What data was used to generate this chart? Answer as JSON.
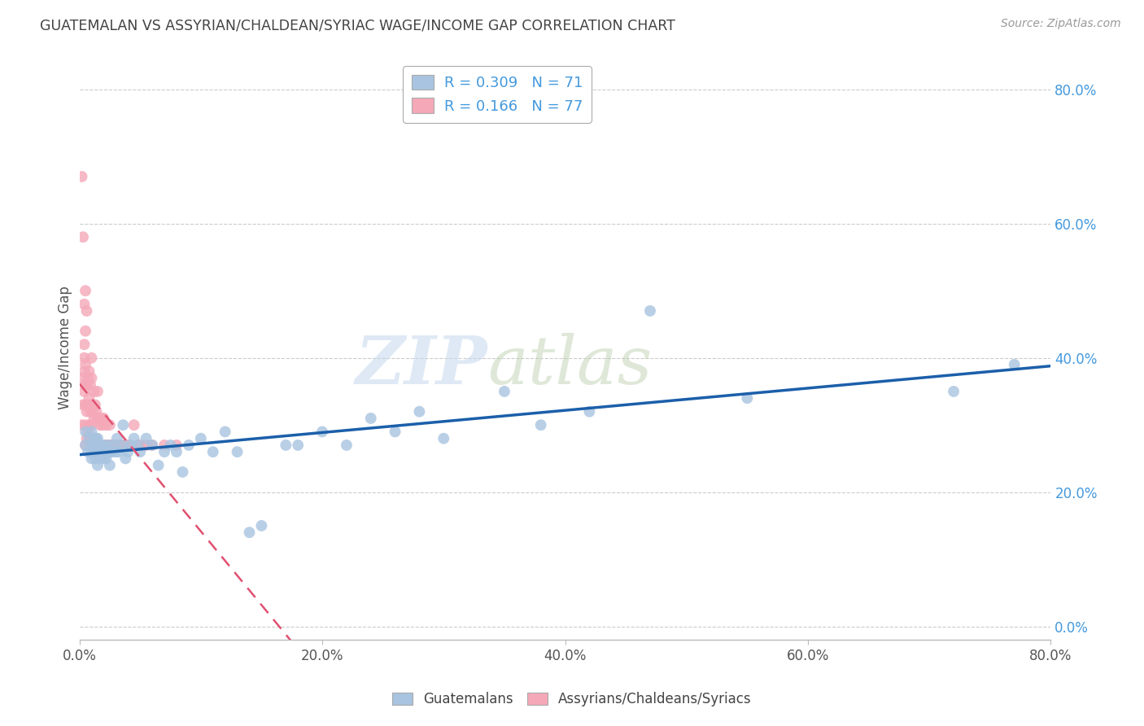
{
  "title": "GUATEMALAN VS ASSYRIAN/CHALDEAN/SYRIAC WAGE/INCOME GAP CORRELATION CHART",
  "source_text": "Source: ZipAtlas.com",
  "ylabel": "Wage/Income Gap",
  "xlabel": "",
  "xmin": 0.0,
  "xmax": 0.8,
  "ymin": -0.02,
  "ymax": 0.85,
  "blue_color": "#A8C4E0",
  "pink_color": "#F4A8B8",
  "blue_line_color": "#1B5FAA",
  "pink_line_color": "#E05070",
  "grid_color": "#CCCCCC",
  "background_color": "#FFFFFF",
  "r_blue": 0.309,
  "n_blue": 71,
  "r_pink": 0.166,
  "n_pink": 77,
  "blue_scatter_x": [
    0.005,
    0.005,
    0.007,
    0.008,
    0.01,
    0.01,
    0.01,
    0.01,
    0.012,
    0.012,
    0.013,
    0.013,
    0.014,
    0.015,
    0.015,
    0.015,
    0.016,
    0.016,
    0.017,
    0.018,
    0.019,
    0.02,
    0.02,
    0.021,
    0.022,
    0.023,
    0.024,
    0.025,
    0.025,
    0.027,
    0.028,
    0.03,
    0.031,
    0.032,
    0.035,
    0.036,
    0.038,
    0.04,
    0.042,
    0.045,
    0.048,
    0.05,
    0.055,
    0.06,
    0.065,
    0.07,
    0.075,
    0.08,
    0.085,
    0.09,
    0.1,
    0.11,
    0.12,
    0.13,
    0.14,
    0.15,
    0.17,
    0.18,
    0.2,
    0.22,
    0.24,
    0.26,
    0.28,
    0.3,
    0.35,
    0.38,
    0.42,
    0.47,
    0.55,
    0.72,
    0.77
  ],
  "blue_scatter_y": [
    0.27,
    0.29,
    0.26,
    0.28,
    0.25,
    0.27,
    0.29,
    0.26,
    0.26,
    0.28,
    0.25,
    0.27,
    0.28,
    0.24,
    0.27,
    0.28,
    0.26,
    0.27,
    0.25,
    0.26,
    0.27,
    0.25,
    0.27,
    0.26,
    0.25,
    0.26,
    0.27,
    0.24,
    0.26,
    0.26,
    0.27,
    0.26,
    0.28,
    0.26,
    0.27,
    0.3,
    0.25,
    0.26,
    0.27,
    0.28,
    0.27,
    0.26,
    0.28,
    0.27,
    0.24,
    0.26,
    0.27,
    0.26,
    0.23,
    0.27,
    0.28,
    0.26,
    0.29,
    0.26,
    0.14,
    0.15,
    0.27,
    0.27,
    0.29,
    0.27,
    0.31,
    0.29,
    0.32,
    0.28,
    0.35,
    0.3,
    0.32,
    0.47,
    0.34,
    0.35,
    0.39
  ],
  "pink_scatter_x": [
    0.002,
    0.003,
    0.003,
    0.004,
    0.004,
    0.004,
    0.005,
    0.005,
    0.005,
    0.005,
    0.005,
    0.006,
    0.006,
    0.006,
    0.007,
    0.007,
    0.007,
    0.008,
    0.008,
    0.008,
    0.009,
    0.009,
    0.009,
    0.01,
    0.01,
    0.01,
    0.01,
    0.01,
    0.011,
    0.011,
    0.012,
    0.012,
    0.012,
    0.013,
    0.013,
    0.014,
    0.014,
    0.015,
    0.015,
    0.015,
    0.016,
    0.016,
    0.017,
    0.017,
    0.018,
    0.018,
    0.019,
    0.019,
    0.02,
    0.02,
    0.021,
    0.022,
    0.022,
    0.023,
    0.024,
    0.025,
    0.025,
    0.027,
    0.028,
    0.03,
    0.032,
    0.035,
    0.038,
    0.04,
    0.045,
    0.05,
    0.055,
    0.06,
    0.07,
    0.08,
    0.002,
    0.003,
    0.004,
    0.004,
    0.005,
    0.005,
    0.006
  ],
  "pink_scatter_y": [
    0.3,
    0.33,
    0.37,
    0.35,
    0.38,
    0.4,
    0.27,
    0.3,
    0.33,
    0.36,
    0.39,
    0.28,
    0.32,
    0.36,
    0.29,
    0.33,
    0.37,
    0.3,
    0.34,
    0.38,
    0.28,
    0.32,
    0.36,
    0.27,
    0.3,
    0.33,
    0.37,
    0.4,
    0.28,
    0.32,
    0.27,
    0.31,
    0.35,
    0.28,
    0.33,
    0.27,
    0.32,
    0.27,
    0.31,
    0.35,
    0.27,
    0.31,
    0.27,
    0.3,
    0.27,
    0.31,
    0.27,
    0.3,
    0.27,
    0.31,
    0.27,
    0.27,
    0.3,
    0.27,
    0.27,
    0.27,
    0.3,
    0.27,
    0.27,
    0.27,
    0.27,
    0.27,
    0.27,
    0.27,
    0.3,
    0.27,
    0.27,
    0.27,
    0.27,
    0.27,
    0.67,
    0.58,
    0.48,
    0.42,
    0.44,
    0.5,
    0.47
  ],
  "watermark_zip": "ZIP",
  "watermark_atlas": "atlas",
  "legend_blue_label": "Guatemalans",
  "legend_pink_label": "Assyrians/Chaldeans/Syriacs",
  "ytick_labels": [
    "0.0%",
    "20.0%",
    "40.0%",
    "60.0%",
    "80.0%"
  ],
  "ytick_vals": [
    0.0,
    0.2,
    0.4,
    0.6,
    0.8
  ],
  "xtick_labels": [
    "0.0%",
    "20.0%",
    "40.0%",
    "60.0%",
    "80.0%"
  ],
  "xtick_vals": [
    0.0,
    0.2,
    0.4,
    0.6,
    0.8
  ],
  "right_tick_color": "#4499DD",
  "title_color": "#444444",
  "source_color": "#999999",
  "axis_label_color": "#555555"
}
